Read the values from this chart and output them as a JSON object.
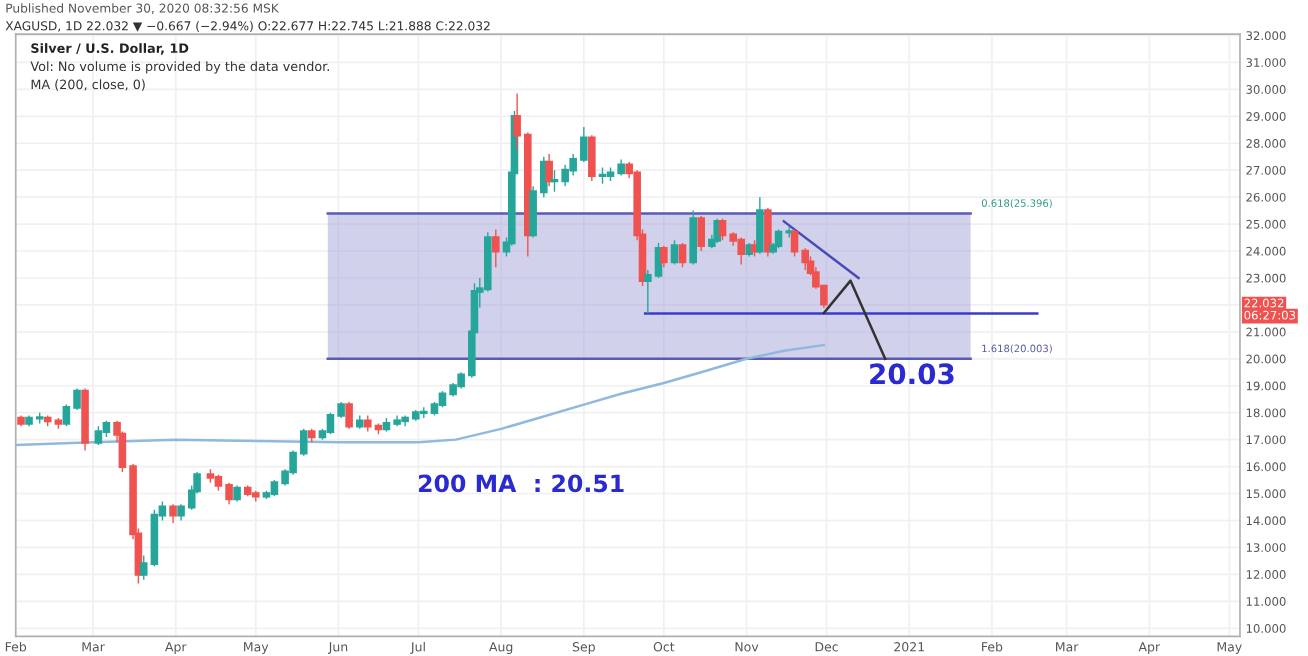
{
  "chart_data": {
    "type": "candlestick",
    "title": "Silver / U.S. Dollar, 1D",
    "subtitle": "Vol: No volume is provided by the data vendor.",
    "annotations": [
      "Published November 30, 2020 08:32:56 MSK",
      "XAGUSD, 1D 22.032 ▼ −0.667 (−2.94%) O:22.677 H:22.745 L:21.888 C:22.032",
      "MA (200, close, 0)",
      "20.03",
      "200 MA  : 20.51",
      {
        "text": "0.618(25.396)",
        "x": "2021-01-24",
        "y": 25.396
      },
      {
        "text": "1.618(20.003)",
        "x": "2021-01-24",
        "y": 20.003
      },
      {
        "text": "22.032",
        "y": 22.032
      },
      "06:27:03"
    ],
    "x": [
      "2020-02-03",
      "2020-02-06",
      "2020-02-10",
      "2020-02-13",
      "2020-02-17",
      "2020-02-20",
      "2020-02-24",
      "2020-02-27",
      "2020-03-03",
      "2020-03-06",
      "2020-03-10",
      "2020-03-12",
      "2020-03-16",
      "2020-03-18",
      "2020-03-20",
      "2020-03-24",
      "2020-03-27",
      "2020-03-31",
      "2020-04-03",
      "2020-04-07",
      "2020-04-09",
      "2020-04-14",
      "2020-04-17",
      "2020-04-21",
      "2020-04-24",
      "2020-04-28",
      "2020-05-01",
      "2020-05-05",
      "2020-05-08",
      "2020-05-12",
      "2020-05-15",
      "2020-05-19",
      "2020-05-22",
      "2020-05-26",
      "2020-05-29",
      "2020-06-02",
      "2020-06-05",
      "2020-06-09",
      "2020-06-12",
      "2020-06-16",
      "2020-06-19",
      "2020-06-23",
      "2020-06-26",
      "2020-06-30",
      "2020-07-03",
      "2020-07-07",
      "2020-07-10",
      "2020-07-14",
      "2020-07-17",
      "2020-07-21",
      "2020-07-22",
      "2020-07-24",
      "2020-07-27",
      "2020-07-30",
      "2020-08-03",
      "2020-08-05",
      "2020-08-06",
      "2020-08-07",
      "2020-08-11",
      "2020-08-13",
      "2020-08-17",
      "2020-08-19",
      "2020-08-21",
      "2020-08-25",
      "2020-08-28",
      "2020-09-01",
      "2020-09-04",
      "2020-09-08",
      "2020-09-11",
      "2020-09-15",
      "2020-09-18",
      "2020-09-21",
      "2020-09-23",
      "2020-09-25",
      "2020-09-29",
      "2020-10-01",
      "2020-10-05",
      "2020-10-08",
      "2020-10-12",
      "2020-10-15",
      "2020-10-19",
      "2020-10-21",
      "2020-10-23",
      "2020-10-27",
      "2020-10-30",
      "2020-11-02",
      "2020-11-04",
      "2020-11-06",
      "2020-11-09",
      "2020-11-11",
      "2020-11-13",
      "2020-11-17",
      "2020-11-19",
      "2020-11-23",
      "2020-11-25",
      "2020-11-27",
      "2020-11-30"
    ],
    "ohlc": [
      [
        17.8,
        17.9,
        17.5,
        17.6
      ],
      [
        17.6,
        17.9,
        17.5,
        17.8
      ],
      [
        17.8,
        18.0,
        17.6,
        17.8
      ],
      [
        17.8,
        17.9,
        17.5,
        17.7
      ],
      [
        17.7,
        17.8,
        17.4,
        17.6
      ],
      [
        17.6,
        18.3,
        17.5,
        18.2
      ],
      [
        18.2,
        18.9,
        18.1,
        18.8
      ],
      [
        18.8,
        18.9,
        16.6,
        16.9
      ],
      [
        16.9,
        17.5,
        16.8,
        17.3
      ],
      [
        17.3,
        17.7,
        17.1,
        17.6
      ],
      [
        17.6,
        17.7,
        16.9,
        17.2
      ],
      [
        17.2,
        17.3,
        15.8,
        16.0
      ],
      [
        16.0,
        16.1,
        13.3,
        13.5
      ],
      [
        13.5,
        13.7,
        11.66,
        12.0
      ],
      [
        12.0,
        12.7,
        11.8,
        12.4
      ],
      [
        12.4,
        14.4,
        12.3,
        14.2
      ],
      [
        14.2,
        14.7,
        14.0,
        14.5
      ],
      [
        14.5,
        14.6,
        13.9,
        14.2
      ],
      [
        14.2,
        14.6,
        14.0,
        14.5
      ],
      [
        14.5,
        15.3,
        14.4,
        15.1
      ],
      [
        15.1,
        15.8,
        15.0,
        15.7
      ],
      [
        15.7,
        15.9,
        15.4,
        15.6
      ],
      [
        15.6,
        15.7,
        15.1,
        15.3
      ],
      [
        15.3,
        15.4,
        14.6,
        14.8
      ],
      [
        14.8,
        15.3,
        14.7,
        15.2
      ],
      [
        15.2,
        15.3,
        14.9,
        15.0
      ],
      [
        15.0,
        15.1,
        14.7,
        14.9
      ],
      [
        14.9,
        15.1,
        14.8,
        15.0
      ],
      [
        15.0,
        15.5,
        14.9,
        15.4
      ],
      [
        15.4,
        15.9,
        15.3,
        15.8
      ],
      [
        15.8,
        16.6,
        15.7,
        16.5
      ],
      [
        16.5,
        17.4,
        16.4,
        17.3
      ],
      [
        17.3,
        17.4,
        16.9,
        17.1
      ],
      [
        17.1,
        17.4,
        17.0,
        17.3
      ],
      [
        17.3,
        18.0,
        17.2,
        17.9
      ],
      [
        17.9,
        18.4,
        17.8,
        18.3
      ],
      [
        18.3,
        18.4,
        17.4,
        17.5
      ],
      [
        17.5,
        17.9,
        17.4,
        17.7
      ],
      [
        17.7,
        17.9,
        17.3,
        17.5
      ],
      [
        17.5,
        17.6,
        17.2,
        17.4
      ],
      [
        17.4,
        17.8,
        17.3,
        17.6
      ],
      [
        17.6,
        17.9,
        17.5,
        17.7
      ],
      [
        17.7,
        17.9,
        17.5,
        17.8
      ],
      [
        17.8,
        18.1,
        17.7,
        18.0
      ],
      [
        18.0,
        18.2,
        17.8,
        18.0
      ],
      [
        18.0,
        18.4,
        17.9,
        18.3
      ],
      [
        18.3,
        18.8,
        18.2,
        18.7
      ],
      [
        18.7,
        19.1,
        18.6,
        19.0
      ],
      [
        19.0,
        19.5,
        18.9,
        19.4
      ],
      [
        19.4,
        21.1,
        19.3,
        21.0
      ],
      [
        21.0,
        22.8,
        20.9,
        22.5
      ],
      [
        22.5,
        23.0,
        21.9,
        22.6
      ],
      [
        22.6,
        24.7,
        22.5,
        24.5
      ],
      [
        24.5,
        24.8,
        23.4,
        24.0
      ],
      [
        24.0,
        24.5,
        23.8,
        24.3
      ],
      [
        24.3,
        27.0,
        24.2,
        26.9
      ],
      [
        26.9,
        29.2,
        26.8,
        29.0
      ],
      [
        29.0,
        29.85,
        27.8,
        28.3
      ],
      [
        28.3,
        28.4,
        23.8,
        24.6
      ],
      [
        24.6,
        26.4,
        24.5,
        26.2
      ],
      [
        26.2,
        27.5,
        26.0,
        27.3
      ],
      [
        27.3,
        27.6,
        26.4,
        26.6
      ],
      [
        26.6,
        27.0,
        26.2,
        26.6
      ],
      [
        26.6,
        27.2,
        26.4,
        27.0
      ],
      [
        27.0,
        27.6,
        26.8,
        27.4
      ],
      [
        27.4,
        28.6,
        27.3,
        28.2
      ],
      [
        28.2,
        28.3,
        26.6,
        26.8
      ],
      [
        26.8,
        27.1,
        26.5,
        26.8
      ],
      [
        26.8,
        27.1,
        26.6,
        26.9
      ],
      [
        26.9,
        27.4,
        26.8,
        27.2
      ],
      [
        27.2,
        27.3,
        26.7,
        26.9
      ],
      [
        26.9,
        27.0,
        24.4,
        24.6
      ],
      [
        24.6,
        24.8,
        22.7,
        22.9
      ],
      [
        22.9,
        23.3,
        21.68,
        23.1
      ],
      [
        23.1,
        24.3,
        23.0,
        24.1
      ],
      [
        24.1,
        24.2,
        23.4,
        23.6
      ],
      [
        23.6,
        24.4,
        23.5,
        24.2
      ],
      [
        24.2,
        24.3,
        23.4,
        23.6
      ],
      [
        23.6,
        25.5,
        23.5,
        25.2
      ],
      [
        25.2,
        25.3,
        24.0,
        24.2
      ],
      [
        24.2,
        24.6,
        24.1,
        24.4
      ],
      [
        24.4,
        25.2,
        24.3,
        25.1
      ],
      [
        25.1,
        25.2,
        24.4,
        24.6
      ],
      [
        24.6,
        24.7,
        24.2,
        24.4
      ],
      [
        24.4,
        24.5,
        23.5,
        23.9
      ],
      [
        23.9,
        24.3,
        23.8,
        24.2
      ],
      [
        24.2,
        24.4,
        23.8,
        24.0
      ],
      [
        24.0,
        26.0,
        23.9,
        25.5
      ],
      [
        25.5,
        25.6,
        23.8,
        24.0
      ],
      [
        24.0,
        24.3,
        23.9,
        24.2
      ],
      [
        24.2,
        24.8,
        24.1,
        24.7
      ],
      [
        24.7,
        24.9,
        24.5,
        24.7
      ],
      [
        24.7,
        24.8,
        23.8,
        24.0
      ],
      [
        24.0,
        24.1,
        23.3,
        23.6
      ],
      [
        23.6,
        23.8,
        23.1,
        23.2
      ],
      [
        23.2,
        23.4,
        22.6,
        22.7
      ],
      [
        22.7,
        22.745,
        21.888,
        22.032
      ]
    ],
    "colors": [
      "#ef5350",
      "#26a69a",
      "#26a69a",
      "#ef5350",
      "#ef5350",
      "#26a69a",
      "#26a69a",
      "#ef5350",
      "#26a69a",
      "#26a69a",
      "#ef5350",
      "#ef5350",
      "#ef5350",
      "#ef5350",
      "#26a69a",
      "#26a69a",
      "#26a69a",
      "#ef5350",
      "#26a69a",
      "#26a69a",
      "#26a69a",
      "#ef5350",
      "#ef5350",
      "#ef5350",
      "#26a69a",
      "#ef5350",
      "#ef5350",
      "#26a69a",
      "#26a69a",
      "#26a69a",
      "#26a69a",
      "#26a69a",
      "#ef5350",
      "#26a69a",
      "#26a69a",
      "#26a69a",
      "#ef5350",
      "#26a69a",
      "#ef5350",
      "#ef5350",
      "#26a69a",
      "#26a69a",
      "#26a69a",
      "#26a69a",
      "#26a69a",
      "#26a69a",
      "#26a69a",
      "#26a69a",
      "#26a69a",
      "#26a69a",
      "#26a69a",
      "#26a69a",
      "#26a69a",
      "#ef5350",
      "#26a69a",
      "#26a69a",
      "#26a69a",
      "#ef5350",
      "#ef5350",
      "#26a69a",
      "#26a69a",
      "#ef5350",
      "#26a69a",
      "#26a69a",
      "#26a69a",
      "#26a69a",
      "#ef5350",
      "#26a69a",
      "#26a69a",
      "#26a69a",
      "#ef5350",
      "#ef5350",
      "#ef5350",
      "#26a69a",
      "#26a69a",
      "#ef5350",
      "#26a69a",
      "#ef5350",
      "#26a69a",
      "#ef5350",
      "#26a69a",
      "#26a69a",
      "#ef5350",
      "#ef5350",
      "#ef5350",
      "#26a69a",
      "#ef5350",
      "#26a69a",
      "#ef5350",
      "#26a69a",
      "#26a69a",
      "#26a69a",
      "#ef5350",
      "#ef5350",
      "#ef5350",
      "#ef5350",
      "#ef5350"
    ],
    "series": [
      {
        "type": "line",
        "x": [
          "2020-05-28",
          "2021-01-24"
        ],
        "values": [
          25.396,
          25.396
        ],
        "color": "#5a5ab4"
      },
      {
        "type": "line",
        "x": [
          "2020-05-28",
          "2021-01-24"
        ],
        "values": [
          20.003,
          20.003
        ],
        "color": "#5a5ab4"
      },
      {
        "type": "line",
        "x": [
          "2020-02-01",
          "2020-03-01",
          "2020-04-01",
          "2020-05-01",
          "2020-06-01",
          "2020-07-01",
          "2020-07-15",
          "2020-08-01",
          "2020-08-15",
          "2020-09-01",
          "2020-09-15",
          "2020-10-01",
          "2020-10-15",
          "2020-11-01",
          "2020-11-15",
          "2020-11-30"
        ],
        "values": [
          16.8,
          16.9,
          17.0,
          16.95,
          16.9,
          16.9,
          17.0,
          17.4,
          17.8,
          18.3,
          18.7,
          19.1,
          19.5,
          20.0,
          20.3,
          20.51
        ],
        "color": "#8fb9dd"
      },
      {
        "type": "line",
        "x": [
          "2020-09-24",
          "2021-02-18"
        ],
        "values": [
          21.68,
          21.68
        ],
        "color": "#3a3ad0"
      },
      {
        "type": "line",
        "x": [
          "2020-11-15",
          "2020-12-13"
        ],
        "values": [
          25.1,
          23.0
        ],
        "color": "#4a4ab8"
      },
      {
        "type": "line",
        "x": [
          "2020-11-30",
          "2020-12-10",
          "2020-12-23"
        ],
        "values": [
          21.7,
          22.9,
          20.0
        ],
        "color": "#333333"
      }
    ],
    "xlim": [
      "2020-02-01",
      "2021-05-05"
    ],
    "xticks": [
      {
        "value": "2020-02-01",
        "label": "Feb"
      },
      {
        "value": "2020-03-01",
        "label": "Mar"
      },
      {
        "value": "2020-04-01",
        "label": "Apr"
      },
      {
        "value": "2020-05-01",
        "label": "May"
      },
      {
        "value": "2020-06-01",
        "label": "Jun"
      },
      {
        "value": "2020-07-01",
        "label": "Jul"
      },
      {
        "value": "2020-08-01",
        "label": "Aug"
      },
      {
        "value": "2020-09-01",
        "label": "Sep"
      },
      {
        "value": "2020-10-01",
        "label": "Oct"
      },
      {
        "value": "2020-11-01",
        "label": "Nov"
      },
      {
        "value": "2020-12-01",
        "label": "Dec"
      },
      {
        "value": "2021-01-01",
        "label": "2021"
      },
      {
        "value": "2021-02-01",
        "label": "Feb"
      },
      {
        "value": "2021-03-01",
        "label": "Mar"
      },
      {
        "value": "2021-04-01",
        "label": "Apr"
      },
      {
        "value": "2021-05-01",
        "label": "May"
      }
    ],
    "ylim": [
      9.7,
      32.05
    ],
    "yticks": [
      {
        "value": 10,
        "label": "10.000"
      },
      {
        "value": 11,
        "label": "11.000"
      },
      {
        "value": 12,
        "label": "12.000"
      },
      {
        "value": 13,
        "label": "13.000"
      },
      {
        "value": 14,
        "label": "14.000"
      },
      {
        "value": 15,
        "label": "15.000"
      },
      {
        "value": 16,
        "label": "16.000"
      },
      {
        "value": 17,
        "label": "17.000"
      },
      {
        "value": 18,
        "label": "18.000"
      },
      {
        "value": 19,
        "label": "19.000"
      },
      {
        "value": 20,
        "label": "20.000"
      },
      {
        "value": 21,
        "label": "21.000"
      },
      {
        "value": 22,
        "label": null
      },
      {
        "value": 23,
        "label": "23.000"
      },
      {
        "value": 24,
        "label": "24.000"
      },
      {
        "value": 25,
        "label": "25.000"
      },
      {
        "value": 26,
        "label": "26.000"
      },
      {
        "value": 27,
        "label": "27.000"
      },
      {
        "value": 28,
        "label": "28.000"
      },
      {
        "value": 29,
        "label": "29.000"
      },
      {
        "value": 30,
        "label": "30.000"
      },
      {
        "value": 31,
        "label": "31.000"
      },
      {
        "value": 32,
        "label": "32.000"
      }
    ],
    "grid": true
  }
}
